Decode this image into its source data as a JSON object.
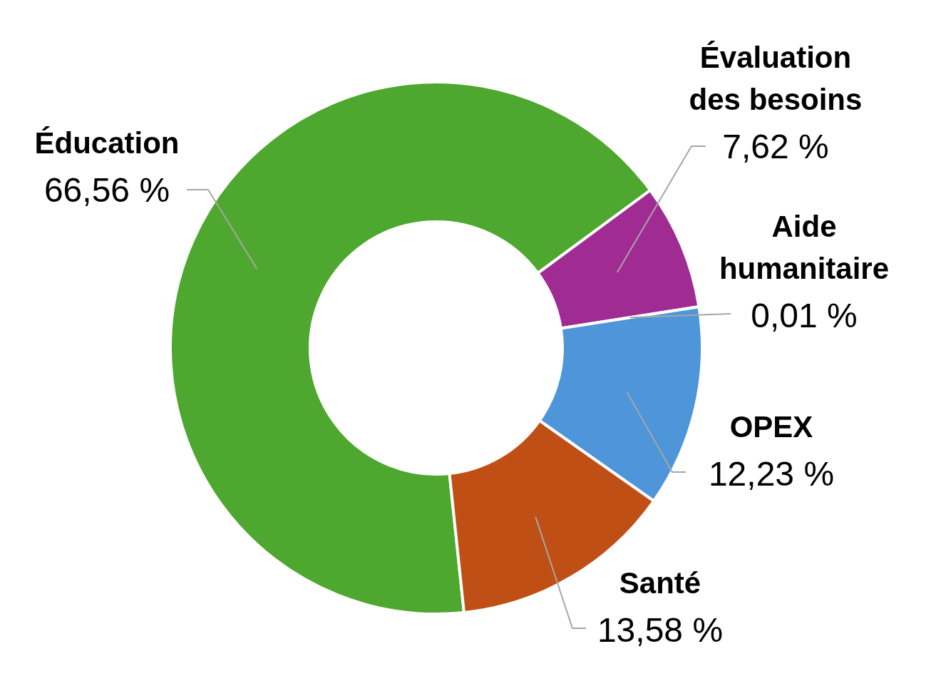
{
  "chart_data": {
    "type": "donut",
    "categories": [
      "Éducation",
      "Évaluation des besoins",
      "Aide humanitaire",
      "OPEX",
      "Santé"
    ],
    "values": [
      66.56,
      7.62,
      0.01,
      12.23,
      13.58
    ],
    "value_labels": [
      "66,56 %",
      "7,62 %",
      "0,01 %",
      "12,23 %",
      "13,58 %"
    ],
    "colors": [
      "#4ea72e",
      "#a02b93",
      "#0f9ed5",
      "#4e95d9",
      "#c04f15"
    ]
  }
}
